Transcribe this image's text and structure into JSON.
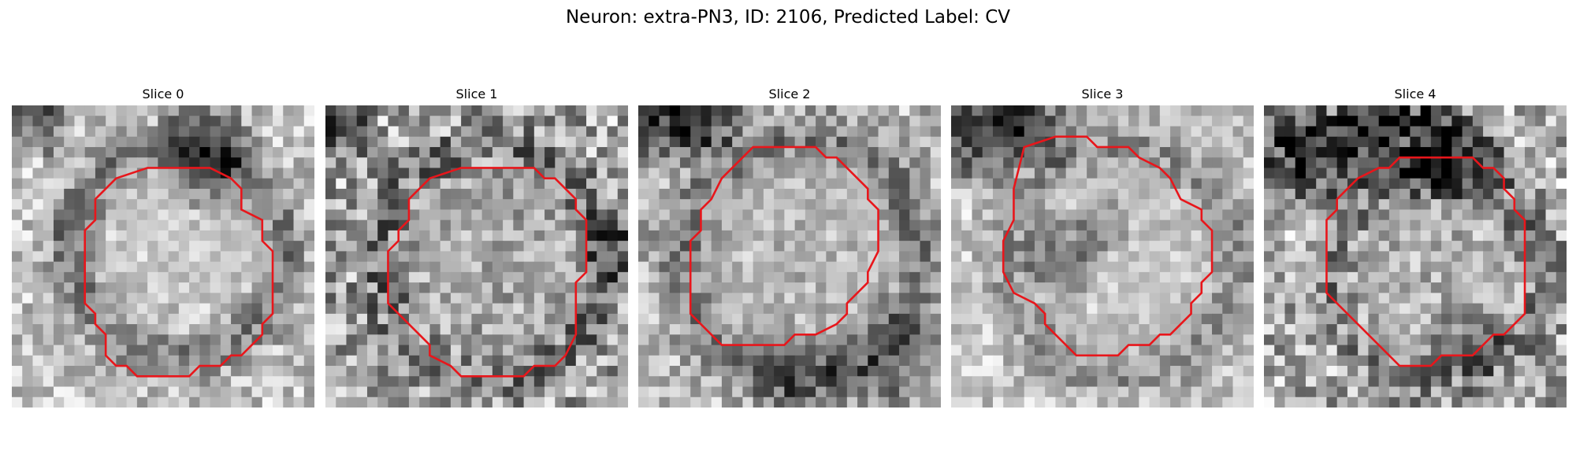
{
  "figure": {
    "title": "Neuron: extra-PN3, ID: 2106, Predicted Label: CV"
  },
  "panels": [
    {
      "title": "Slice 0"
    },
    {
      "title": "Slice 1"
    },
    {
      "title": "Slice 2"
    },
    {
      "title": "Slice 3"
    },
    {
      "title": "Slice 4"
    }
  ],
  "colors": {
    "contour": "#e8161b",
    "background": "#ffffff"
  }
}
